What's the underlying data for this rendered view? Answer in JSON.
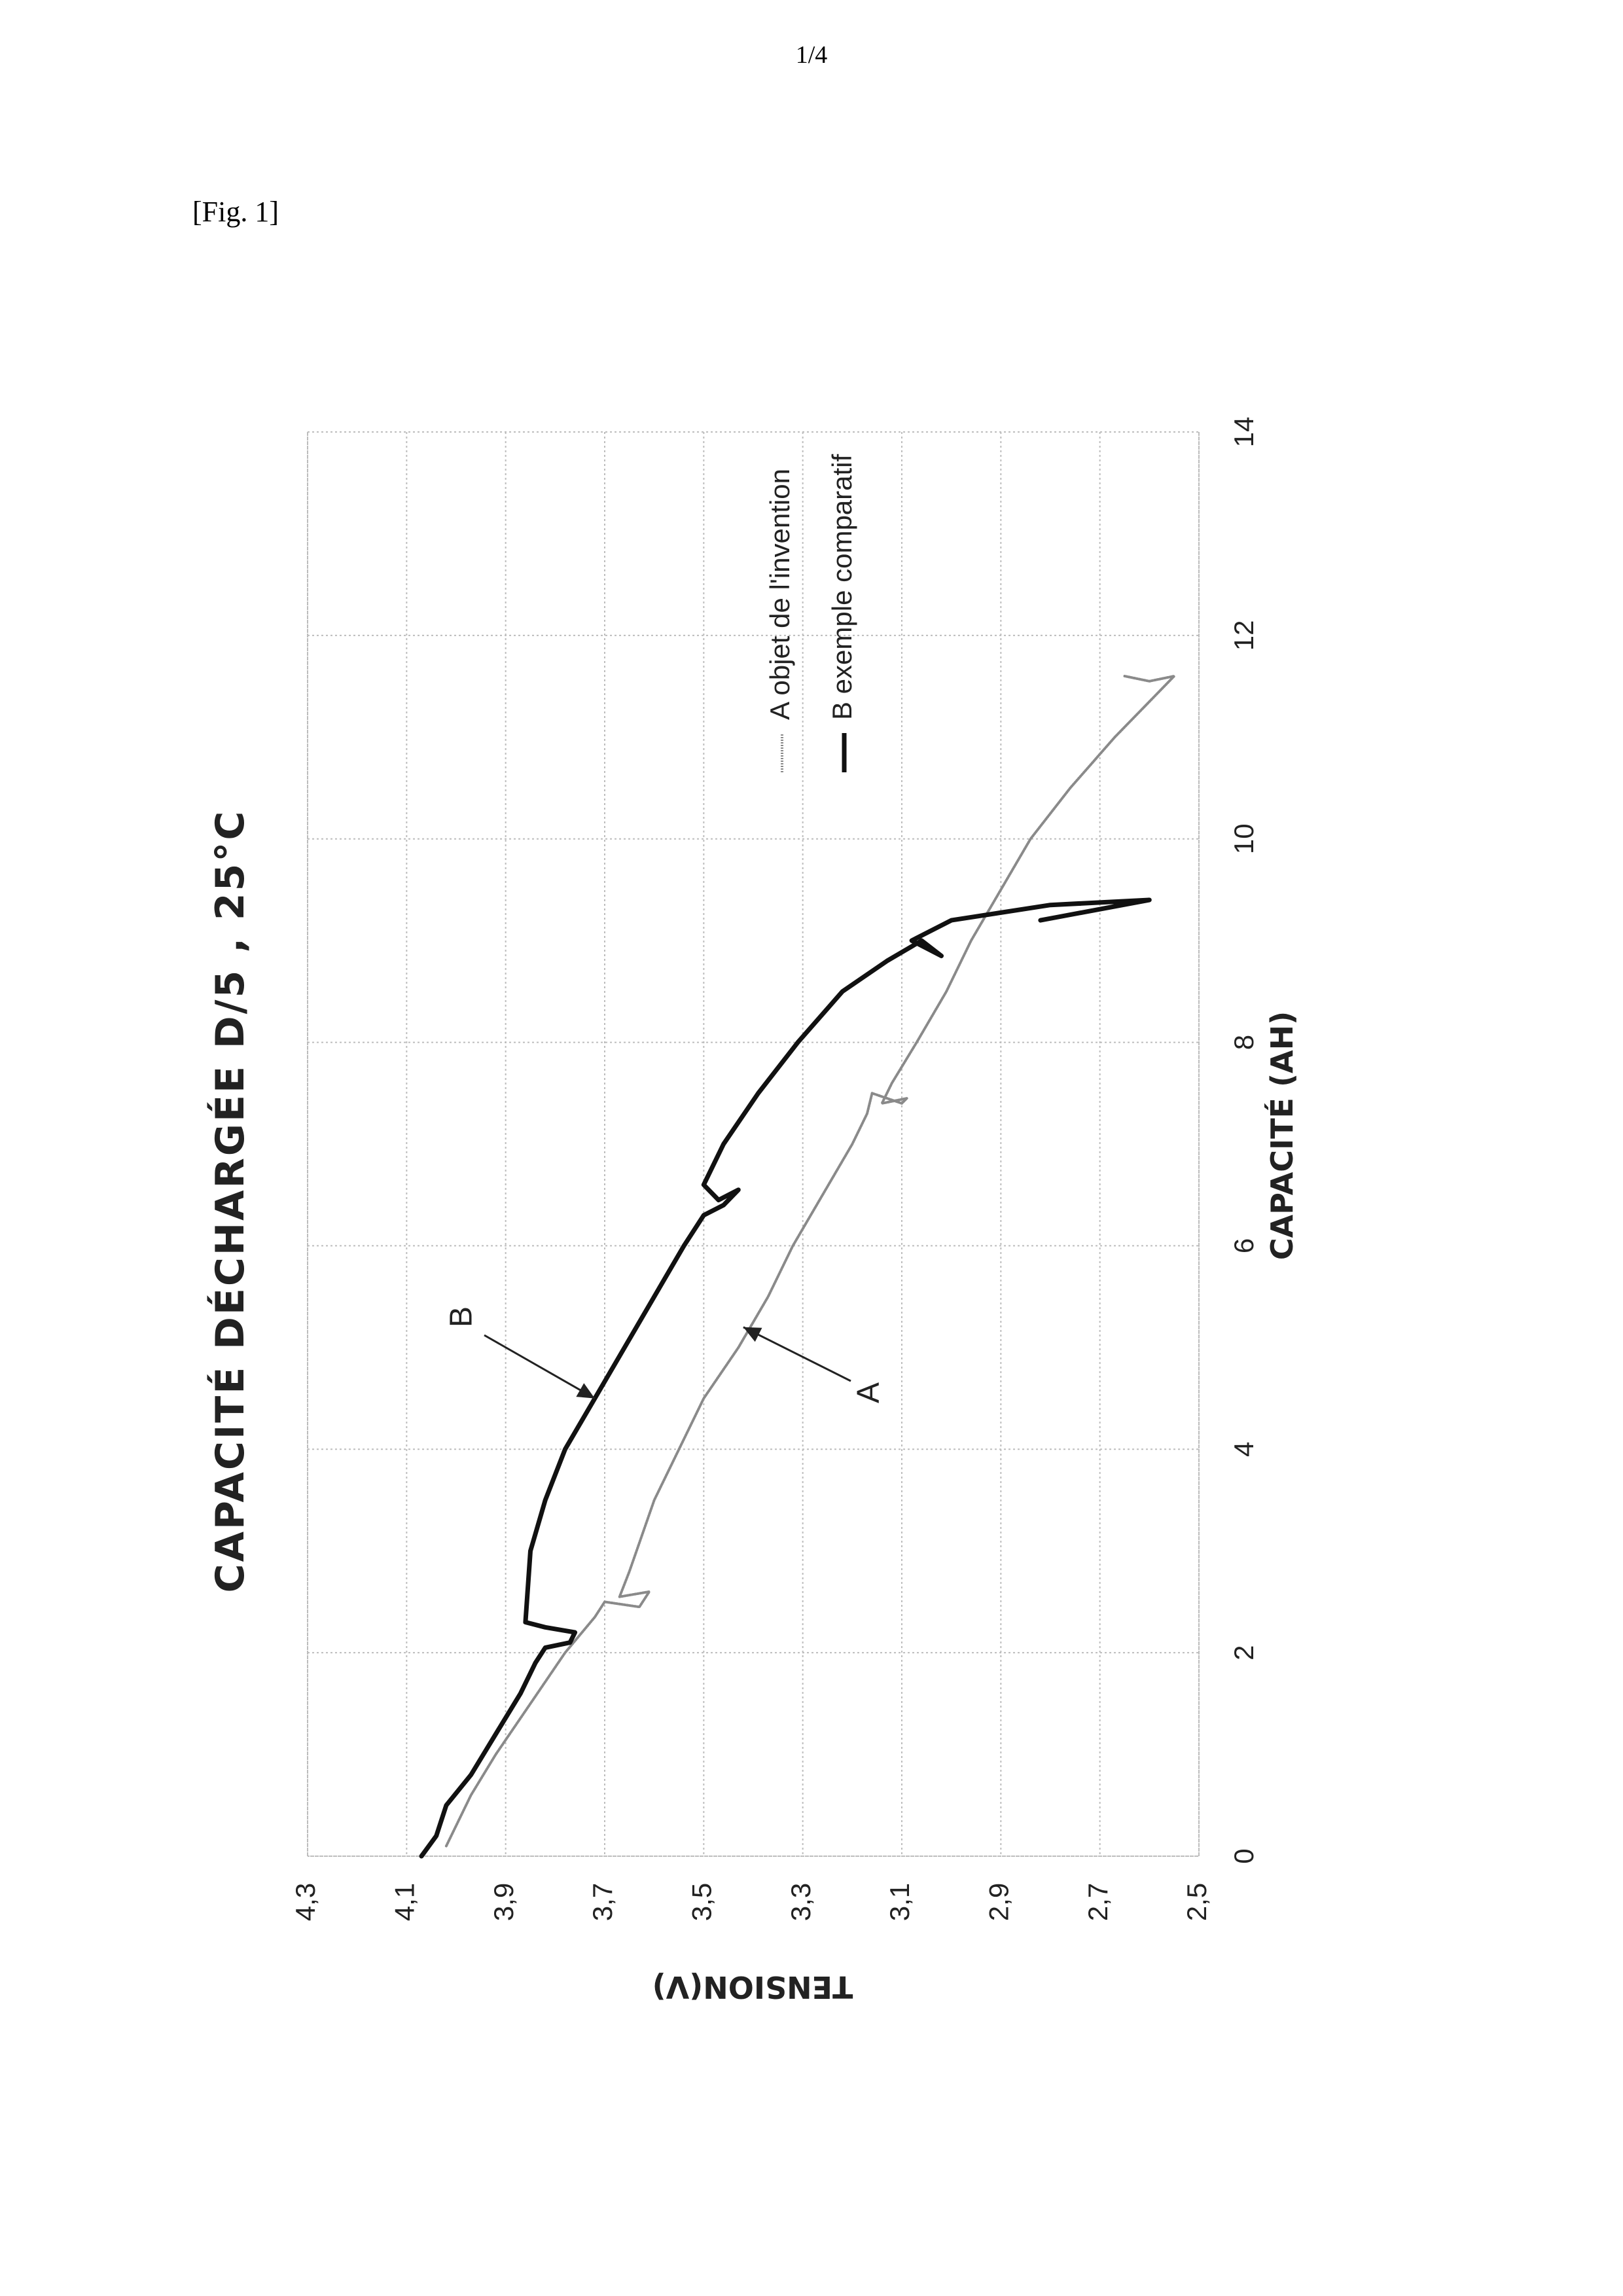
{
  "page": {
    "number": "1/4",
    "figure_label": "[Fig. 1]"
  },
  "chart_data": {
    "type": "line",
    "title": "CAPACITÉ DÉCHARGÉE D/5 , 25°C",
    "xlabel": "CAPACITÉ (AH)",
    "ylabel": "TENSION(V)",
    "xlim": [
      0,
      14
    ],
    "ylim": [
      2.5,
      4.3
    ],
    "xticks": [
      "0",
      "2",
      "4",
      "6",
      "8",
      "10",
      "12",
      "14"
    ],
    "yticks": [
      "4,3",
      "4,1",
      "3,9",
      "3,7",
      "3,5",
      "3,3",
      "3,1",
      "2,9",
      "2,7",
      "2,5"
    ],
    "grid": true,
    "orientation": "page rotated 90° counter-clockwise",
    "legend_position": "top-right",
    "series": [
      {
        "name": "A objet de l'invention",
        "label": "A",
        "style": "thin-dotted",
        "color": "#8a8a8a",
        "points": [
          [
            0.1,
            4.02
          ],
          [
            0.3,
            4.0
          ],
          [
            0.6,
            3.97
          ],
          [
            1.0,
            3.92
          ],
          [
            1.5,
            3.85
          ],
          [
            2.0,
            3.78
          ],
          [
            2.35,
            3.72
          ],
          [
            2.5,
            3.7
          ],
          [
            2.45,
            3.63
          ],
          [
            2.6,
            3.61
          ],
          [
            2.55,
            3.67
          ],
          [
            2.8,
            3.65
          ],
          [
            3.5,
            3.6
          ],
          [
            4.0,
            3.55
          ],
          [
            4.5,
            3.5
          ],
          [
            5.0,
            3.43
          ],
          [
            5.5,
            3.37
          ],
          [
            6.0,
            3.32
          ],
          [
            6.5,
            3.26
          ],
          [
            7.0,
            3.2
          ],
          [
            7.3,
            3.17
          ],
          [
            7.5,
            3.16
          ],
          [
            7.4,
            3.1
          ],
          [
            7.45,
            3.09
          ],
          [
            7.4,
            3.14
          ],
          [
            7.6,
            3.12
          ],
          [
            8.0,
            3.07
          ],
          [
            8.5,
            3.01
          ],
          [
            9.0,
            2.96
          ],
          [
            9.5,
            2.9
          ],
          [
            10.0,
            2.84
          ],
          [
            10.5,
            2.76
          ],
          [
            11.0,
            2.67
          ],
          [
            11.3,
            2.61
          ],
          [
            11.6,
            2.55
          ],
          [
            11.55,
            2.6
          ],
          [
            11.6,
            2.65
          ]
        ]
      },
      {
        "name": "B exemple comparatif",
        "label": "B",
        "style": "thick-solid",
        "color": "#111111",
        "points": [
          [
            0.0,
            4.07
          ],
          [
            0.2,
            4.04
          ],
          [
            0.5,
            4.02
          ],
          [
            0.8,
            3.97
          ],
          [
            1.2,
            3.92
          ],
          [
            1.6,
            3.87
          ],
          [
            1.9,
            3.84
          ],
          [
            2.05,
            3.82
          ],
          [
            2.1,
            3.77
          ],
          [
            2.2,
            3.76
          ],
          [
            2.25,
            3.82
          ],
          [
            2.3,
            3.86
          ],
          [
            3.0,
            3.85
          ],
          [
            3.5,
            3.82
          ],
          [
            4.0,
            3.78
          ],
          [
            4.5,
            3.72
          ],
          [
            5.0,
            3.66
          ],
          [
            5.5,
            3.6
          ],
          [
            6.0,
            3.54
          ],
          [
            6.3,
            3.5
          ],
          [
            6.4,
            3.46
          ],
          [
            6.55,
            3.43
          ],
          [
            6.45,
            3.47
          ],
          [
            6.6,
            3.5
          ],
          [
            7.0,
            3.46
          ],
          [
            7.5,
            3.39
          ],
          [
            8.0,
            3.31
          ],
          [
            8.5,
            3.22
          ],
          [
            8.8,
            3.13
          ],
          [
            9.0,
            3.06
          ],
          [
            8.85,
            3.02
          ],
          [
            9.0,
            3.08
          ],
          [
            9.2,
            3.0
          ],
          [
            9.35,
            2.8
          ],
          [
            9.4,
            2.6
          ],
          [
            9.2,
            2.82
          ]
        ]
      }
    ]
  }
}
